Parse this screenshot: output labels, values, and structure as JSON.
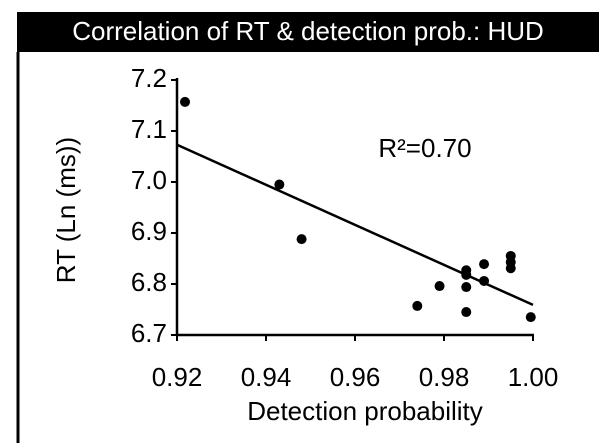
{
  "chart_data": {
    "type": "scatter",
    "title": "Correlation of RT & detection prob.: HUD",
    "xlabel": "Detection probability",
    "ylabel": "RT (Ln (ms))",
    "annotation": "R²=0.70",
    "x": [
      0.9218,
      0.943,
      0.948,
      0.974,
      0.979,
      0.985,
      0.985,
      0.985,
      0.985,
      0.989,
      0.989,
      0.995,
      0.995,
      0.995,
      0.9995
    ],
    "values": [
      7.157,
      6.995,
      6.888,
      6.757,
      6.796,
      6.827,
      6.818,
      6.794,
      6.745,
      6.839,
      6.806,
      6.855,
      6.843,
      6.831,
      6.735
    ],
    "color": "#000000",
    "fit": {
      "x": [
        0.92,
        1.0
      ],
      "y": [
        7.073,
        6.759
      ]
    },
    "xlim": [
      0.92,
      1.0
    ],
    "ylim": [
      6.7,
      7.2
    ],
    "xticks": [
      0.92,
      0.94,
      0.96,
      0.98,
      {
        "value": 1,
        "label": "1.00"
      }
    ],
    "yticks": [
      {
        "value": 6.7,
        "label": "6.7"
      },
      6.8,
      6.9,
      {
        "value": 7,
        "label": "7.0"
      },
      7.1,
      7.2
    ]
  }
}
